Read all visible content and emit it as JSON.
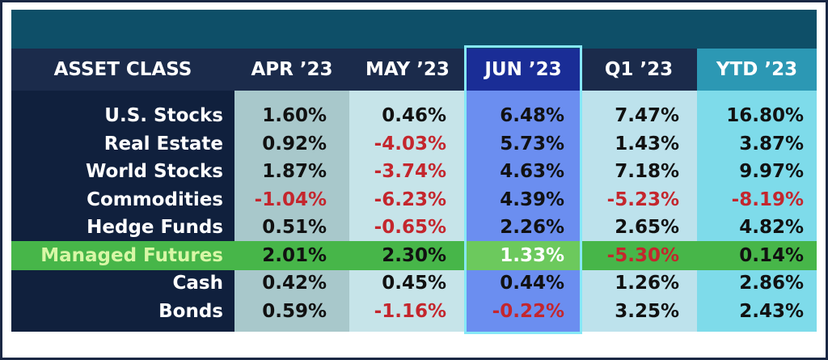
{
  "table": {
    "header": [
      "ASSET CLASS",
      "APR ’23",
      "MAY ’23",
      "JUN ’23",
      "Q1 ’23",
      "YTD ’23"
    ],
    "rows": [
      [
        "U.S. Stocks",
        "1.60%",
        "0.46%",
        "6.48%",
        "7.47%",
        "16.80%"
      ],
      [
        "Real Estate",
        "0.92%",
        "-4.03%",
        "5.73%",
        "1.43%",
        "3.87%"
      ],
      [
        "World Stocks",
        "1.87%",
        "-3.74%",
        "4.63%",
        "7.18%",
        "9.97%"
      ],
      [
        "Commodities",
        "-1.04%",
        "-6.23%",
        "4.39%",
        "-5.23%",
        "-8.19%"
      ],
      [
        "Hedge Funds",
        "0.51%",
        "-0.65%",
        "2.26%",
        "2.65%",
        "4.82%"
      ],
      [
        "Managed Futures",
        "2.01%",
        "2.30%",
        "1.33%",
        "-5.30%",
        "0.14%"
      ],
      [
        "Cash",
        "0.42%",
        "0.45%",
        "0.44%",
        "1.26%",
        "2.86%"
      ],
      [
        "Bonds",
        "0.59%",
        "-1.16%",
        "-0.22%",
        "3.25%",
        "2.43%"
      ]
    ]
  }
}
